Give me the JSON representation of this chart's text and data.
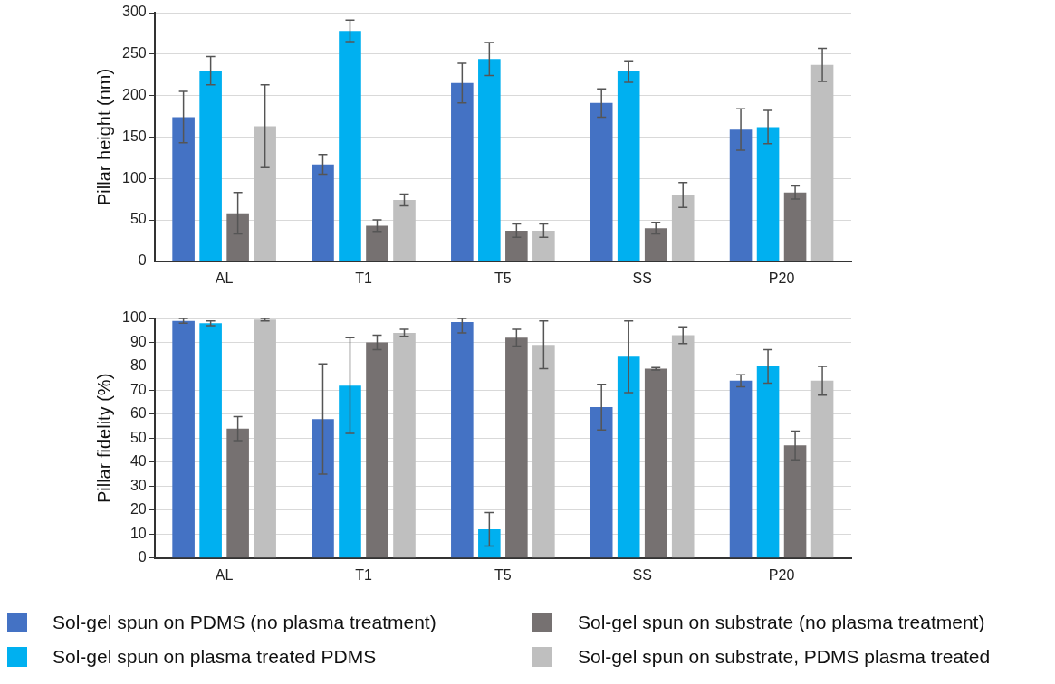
{
  "chart_data": [
    {
      "type": "bar",
      "ylabel": "Pillar height (nm)",
      "categories": [
        "AL",
        "T1",
        "T5",
        "SS",
        "P20"
      ],
      "ylim": [
        0,
        300
      ],
      "yticks": [
        0,
        50,
        100,
        150,
        200,
        250,
        300
      ],
      "grid": "y",
      "series": [
        {
          "color": "#4472c4",
          "values": [
            174,
            117,
            215,
            191,
            159
          ],
          "errors": [
            31,
            12,
            24,
            17,
            25
          ]
        },
        {
          "color": "#00b0f0",
          "values": [
            230,
            278,
            244,
            229,
            162
          ],
          "errors": [
            17,
            13,
            20,
            13,
            20
          ]
        },
        {
          "color": "#767171",
          "values": [
            58,
            43,
            37,
            40,
            83
          ],
          "errors": [
            25,
            7,
            8,
            7,
            8
          ]
        },
        {
          "color": "#bfbfbf",
          "values": [
            163,
            74,
            37,
            80,
            237
          ],
          "errors": [
            50,
            7,
            8,
            15,
            20
          ]
        }
      ]
    },
    {
      "type": "bar",
      "ylabel": "Pillar fidelity (%)",
      "categories": [
        "AL",
        "T1",
        "T5",
        "SS",
        "P20"
      ],
      "ylim": [
        0,
        100
      ],
      "yticks": [
        0,
        10,
        20,
        30,
        40,
        50,
        60,
        70,
        80,
        90,
        100
      ],
      "grid": "y",
      "legend": "bottom",
      "series": [
        {
          "name": "Sol-gel spun on PDMS (no plasma treatment)",
          "color": "#4472c4",
          "values": [
            99,
            58,
            98.5,
            63,
            74
          ],
          "errors": [
            1,
            23,
            [
              94,
              100
            ],
            9.5,
            2.5
          ]
        },
        {
          "name": "Sol-gel spun on plasma treated PDMS",
          "color": "#00b0f0",
          "values": [
            98,
            72,
            12,
            84,
            80
          ],
          "errors": [
            1,
            20,
            7,
            15,
            7
          ]
        },
        {
          "name": "Sol-gel spun on substrate (no plasma treatment)",
          "color": "#767171",
          "values": [
            54,
            90,
            92,
            79,
            47
          ],
          "errors": [
            5,
            3,
            3.5,
            0.5,
            6
          ]
        },
        {
          "name": "Sol-gel spun on substrate, PDMS plasma treated",
          "color": "#bfbfbf",
          "values": [
            99.5,
            94,
            89,
            93,
            74
          ],
          "errors": [
            0.5,
            1.5,
            10,
            3.5,
            6
          ]
        }
      ]
    }
  ]
}
